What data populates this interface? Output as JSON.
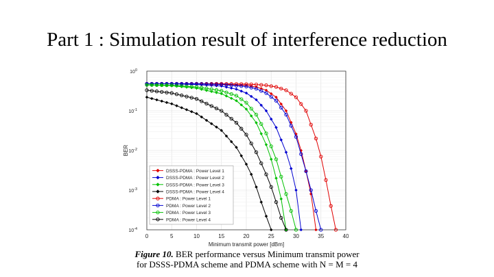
{
  "slide": {
    "title": "Part 1 : Simulation result of interference reduction"
  },
  "caption": {
    "label": "Figure 10.",
    "line1": "BER performance versus Minimum transmit power",
    "line2": "for DSSS-PDMA scheme and PDMA scheme with N = M = 4"
  },
  "chart_data": {
    "type": "line",
    "xlabel": "Minimum transmit power [dBm]",
    "ylabel": "BER",
    "xlim": [
      0,
      40
    ],
    "ylim": [
      0.0001,
      1
    ],
    "yscale": "log",
    "xticks": [
      "0",
      "5",
      "10",
      "15",
      "20",
      "25",
      "30",
      "35",
      "40"
    ],
    "yticks": [
      "10^0",
      "10^-1",
      "10^-2",
      "10^-3",
      "10^-4"
    ],
    "grid": true,
    "legend_position": "bottom-left",
    "series": [
      {
        "name": "DSSS-PDMA : Power Level 1",
        "color": "#e00000",
        "marker": "diamond",
        "x": [
          0,
          10,
          15,
          20,
          22,
          24,
          26,
          28,
          30,
          31,
          32,
          33,
          34
        ],
        "y": [
          0.48,
          0.48,
          0.47,
          0.44,
          0.4,
          0.33,
          0.22,
          0.1,
          0.026,
          0.01,
          0.003,
          0.0008,
          0.0001
        ]
      },
      {
        "name": "DSSS-PDMA : Power Level 2",
        "color": "#0000d0",
        "marker": "diamond",
        "x": [
          0,
          5,
          10,
          15,
          18,
          20,
          22,
          24,
          26,
          28,
          29,
          30,
          31
        ],
        "y": [
          0.48,
          0.48,
          0.46,
          0.42,
          0.35,
          0.28,
          0.19,
          0.1,
          0.038,
          0.009,
          0.0035,
          0.001,
          0.0001
        ]
      },
      {
        "name": "DSSS-PDMA : Power Level 3",
        "color": "#00c000",
        "marker": "diamond",
        "x": [
          0,
          5,
          10,
          15,
          18,
          20,
          22,
          24,
          25,
          26,
          27,
          28
        ],
        "y": [
          0.45,
          0.43,
          0.37,
          0.27,
          0.18,
          0.11,
          0.05,
          0.014,
          0.006,
          0.002,
          0.0006,
          0.0001
        ]
      },
      {
        "name": "DSSS-PDMA : Power Level 4",
        "color": "#000000",
        "marker": "diamond",
        "x": [
          0,
          5,
          10,
          15,
          18,
          20,
          21,
          22,
          23,
          24,
          25
        ],
        "y": [
          0.22,
          0.15,
          0.085,
          0.032,
          0.012,
          0.0045,
          0.0025,
          0.0012,
          0.0005,
          0.00022,
          0.0001
        ]
      },
      {
        "name": "PDMA : Power Level 1",
        "color": "#e00000",
        "marker": "circle",
        "x": [
          0,
          10,
          15,
          20,
          22,
          24,
          26,
          28,
          30,
          32,
          34,
          35,
          36,
          37,
          38
        ],
        "y": [
          0.48,
          0.48,
          0.48,
          0.47,
          0.46,
          0.44,
          0.4,
          0.33,
          0.22,
          0.1,
          0.02,
          0.007,
          0.0018,
          0.0004,
          0.0001
        ]
      },
      {
        "name": "PDMA : Power Level 2",
        "color": "#0000d0",
        "marker": "circle",
        "x": [
          0,
          10,
          15,
          20,
          22,
          24,
          26,
          28,
          30,
          32,
          33,
          34,
          35
        ],
        "y": [
          0.48,
          0.48,
          0.46,
          0.41,
          0.36,
          0.28,
          0.18,
          0.08,
          0.022,
          0.003,
          0.001,
          0.0003,
          0.0001
        ]
      },
      {
        "name": "PDMA : Power Level 3",
        "color": "#00c000",
        "marker": "circle",
        "x": [
          0,
          5,
          10,
          15,
          18,
          20,
          22,
          24,
          26,
          28,
          29,
          30
        ],
        "y": [
          0.45,
          0.44,
          0.4,
          0.32,
          0.24,
          0.16,
          0.08,
          0.027,
          0.006,
          0.0008,
          0.0003,
          0.0001
        ]
      },
      {
        "name": "PDMA : Power Level 4",
        "color": "#000000",
        "marker": "circle",
        "x": [
          0,
          5,
          10,
          15,
          18,
          20,
          22,
          24,
          25,
          26,
          27,
          28
        ],
        "y": [
          0.33,
          0.28,
          0.2,
          0.1,
          0.05,
          0.025,
          0.009,
          0.0025,
          0.0012,
          0.0005,
          0.0002,
          0.0001
        ]
      }
    ]
  }
}
